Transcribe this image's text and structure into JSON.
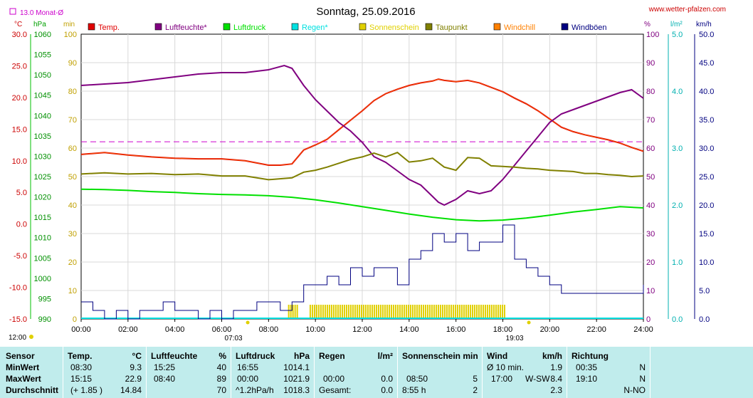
{
  "header": {
    "title": "Sonntag, 25.09.2016",
    "website": "www.wetter-pfalzen.com",
    "month_avg_label": "13.0 Monat-Ø"
  },
  "legend": [
    {
      "label": "Temp.",
      "color": "#e00000"
    },
    {
      "label": "Luftfeuchte*",
      "color": "#800080"
    },
    {
      "label": "Luftdruck",
      "color": "#00e000"
    },
    {
      "label": "Regen*",
      "color": "#00e0e0"
    },
    {
      "label": "Sonnenschein",
      "color": "#e0d000"
    },
    {
      "label": "Taupunkt",
      "color": "#808000"
    },
    {
      "label": "Windchill",
      "color": "#ff8000"
    },
    {
      "label": "Windböen",
      "color": "#000080"
    }
  ],
  "axis_units": {
    "temp": "°C",
    "pressure": "hPa",
    "sun": "min",
    "humidity": "%",
    "rain": "l/m²",
    "wind": "km/h"
  },
  "axes": {
    "temp_ticks": [
      "30.0",
      "25.0",
      "20.0",
      "15.0",
      "10.0",
      "5.0",
      "0.0",
      "-5.0",
      "-10.0",
      "-15.0"
    ],
    "pressure_ticks": [
      "1060",
      "1055",
      "1050",
      "1045",
      "1040",
      "1035",
      "1030",
      "1025",
      "1020",
      "1015",
      "1010",
      "1005",
      "1000",
      "995",
      "990"
    ],
    "sun_ticks": [
      "100",
      "90",
      "80",
      "70",
      "60",
      "50",
      "40",
      "30",
      "20",
      "10",
      "0"
    ],
    "humidity_ticks": [
      "100",
      "90",
      "80",
      "70",
      "60",
      "50",
      "40",
      "30",
      "20",
      "10",
      "0"
    ],
    "rain_ticks": [
      "5.0",
      "4.0",
      "3.0",
      "2.0",
      "1.0",
      "0.0"
    ],
    "wind_ticks": [
      "50.0",
      "45.0",
      "40.0",
      "35.0",
      "30.0",
      "25.0",
      "20.0",
      "15.0",
      "10.0",
      "5.0",
      "0.0"
    ],
    "time_ticks": [
      "00:00",
      "02:00",
      "04:00",
      "06:00",
      "08:00",
      "10:00",
      "12:00",
      "14:00",
      "16:00",
      "18:00",
      "20:00",
      "22:00",
      "24:00"
    ],
    "sunrise": "07:03",
    "sunset": "19:03",
    "noon_label": "12:00"
  },
  "chart_data": {
    "type": "line",
    "x_unit": "hours",
    "xlim": [
      0,
      24
    ],
    "month_avg_temp": 13.0,
    "series": [
      {
        "name": "Temp.",
        "color": "#e00000",
        "axis": "temp",
        "ylim": [
          -15,
          30
        ],
        "x": [
          0,
          1,
          2,
          3,
          4,
          5,
          6,
          7,
          8,
          8.5,
          9,
          9.5,
          10,
          10.5,
          11,
          11.5,
          12,
          12.5,
          13,
          13.5,
          14,
          14.5,
          15,
          15.25,
          15.5,
          16,
          16.5,
          17,
          17.5,
          18,
          18.5,
          19,
          19.5,
          20,
          20.5,
          21,
          21.5,
          22,
          22.5,
          23,
          23.5,
          24
        ],
        "y": [
          11.0,
          11.3,
          10.9,
          10.6,
          10.4,
          10.3,
          10.3,
          10.0,
          9.3,
          9.3,
          9.5,
          11.7,
          12.5,
          13.4,
          14.9,
          16.4,
          17.9,
          19.5,
          20.6,
          21.3,
          21.9,
          22.3,
          22.6,
          22.9,
          22.7,
          22.5,
          22.7,
          22.3,
          21.6,
          20.9,
          19.9,
          19.0,
          17.9,
          16.6,
          15.3,
          14.6,
          14.1,
          13.7,
          13.3,
          12.8,
          12.1,
          11.5
        ]
      },
      {
        "name": "Luftfeuchte*",
        "color": "#800080",
        "axis": "humidity",
        "ylim": [
          0,
          100
        ],
        "x": [
          0,
          1,
          2,
          3,
          4,
          5,
          6,
          7,
          8,
          8.67,
          9,
          9.5,
          10,
          10.5,
          11,
          11.5,
          12,
          12.5,
          13,
          13.5,
          14,
          14.5,
          15,
          15.25,
          15.5,
          16,
          16.5,
          17,
          17.5,
          18,
          18.5,
          19,
          19.5,
          20,
          20.5,
          21,
          21.5,
          22,
          22.5,
          23,
          23.5,
          24
        ],
        "y": [
          82,
          82.5,
          83,
          84,
          85,
          86,
          86.5,
          86.5,
          87.5,
          89,
          88,
          82,
          77,
          73,
          69,
          66,
          62,
          57,
          55,
          52,
          49,
          47,
          43,
          41,
          40,
          42,
          45,
          44,
          45,
          49,
          54,
          59,
          64,
          69,
          72,
          73.5,
          75,
          76.5,
          78,
          79.5,
          80.5,
          77.5
        ]
      },
      {
        "name": "Luftdruck",
        "color": "#00e000",
        "axis": "pressure",
        "ylim": [
          990,
          1060
        ],
        "x": [
          0,
          1,
          2,
          3,
          4,
          5,
          6,
          7,
          8,
          9,
          10,
          11,
          12,
          13,
          14,
          15,
          16,
          17,
          18,
          19,
          20,
          21,
          22,
          23,
          24
        ],
        "y": [
          1021.9,
          1021.8,
          1021.6,
          1021.3,
          1021.1,
          1020.8,
          1020.6,
          1020.5,
          1020.3,
          1019.9,
          1019.3,
          1018.5,
          1017.6,
          1016.7,
          1015.8,
          1015.0,
          1014.4,
          1014.1,
          1014.3,
          1014.8,
          1015.5,
          1016.3,
          1016.9,
          1017.6,
          1017.3
        ]
      },
      {
        "name": "Taupunkt",
        "color": "#808000",
        "axis": "temp",
        "ylim": [
          -15,
          30
        ],
        "x": [
          0,
          1,
          2,
          3,
          4,
          5,
          6,
          7,
          8,
          9,
          9.5,
          10,
          10.5,
          11,
          11.5,
          12,
          12.5,
          13,
          13.5,
          14,
          14.5,
          15,
          15.5,
          16,
          16.5,
          17,
          17.5,
          18,
          18.5,
          19,
          19.5,
          20,
          20.5,
          21,
          21.5,
          22,
          22.5,
          23,
          23.5,
          24
        ],
        "y": [
          7.9,
          8.1,
          7.9,
          8.0,
          7.8,
          7.9,
          7.6,
          7.6,
          7.0,
          7.3,
          8.2,
          8.5,
          9.0,
          9.6,
          10.2,
          10.6,
          11.2,
          10.6,
          11.3,
          9.8,
          10.0,
          10.4,
          9.0,
          8.5,
          10.5,
          10.4,
          9.2,
          9.1,
          9.0,
          8.8,
          8.7,
          8.5,
          8.4,
          8.3,
          8.0,
          8.0,
          7.8,
          7.7,
          7.5,
          7.6
        ]
      },
      {
        "name": "Windböen",
        "color": "#000080",
        "axis": "wind",
        "ylim": [
          0,
          50
        ],
        "x": [
          0,
          0.5,
          1,
          1.5,
          2,
          2.5,
          3,
          3.5,
          4,
          4.5,
          5,
          5.5,
          6,
          6.5,
          7,
          7.5,
          8,
          8.5,
          9,
          9.5,
          10,
          10.5,
          11,
          11.5,
          12,
          12.5,
          13,
          13.5,
          14,
          14.5,
          15,
          15.5,
          16,
          16.5,
          17,
          17.5,
          18,
          18.5,
          19,
          19.5,
          20,
          20.5,
          21,
          21.5,
          22,
          22.5,
          23,
          23.5,
          24
        ],
        "y": [
          3,
          1.5,
          0,
          1.5,
          0,
          1.5,
          1.5,
          3,
          1.5,
          1.5,
          0,
          1.5,
          0,
          1.5,
          1.5,
          3,
          3,
          1.5,
          3,
          6,
          6,
          7.5,
          6,
          9,
          7.5,
          9,
          9,
          6,
          10.5,
          12,
          15,
          13.5,
          15,
          12,
          13.5,
          13.5,
          16.5,
          10.5,
          9,
          7.5,
          6,
          4.5,
          4.5,
          4.5,
          4.5,
          4.5,
          4.5,
          4.5,
          6
        ]
      },
      {
        "name": "Sonnenschein",
        "color": "#e0d000",
        "axis": "sun",
        "ylim": [
          0,
          100
        ],
        "segments": [
          [
            8.83,
            9.25
          ],
          [
            9.75,
            18.1
          ]
        ],
        "value": 5
      }
    ]
  },
  "stats": {
    "sensor": {
      "header": "Sensor",
      "rows": [
        "MinWert",
        "MaxWert",
        "Durchschnitt"
      ]
    },
    "temp": {
      "header": "Temp.",
      "unit": "°C",
      "rows": [
        [
          "08:30",
          "9.3"
        ],
        [
          "15:15",
          "22.9"
        ],
        [
          "(+ 1.85 )",
          "14.84"
        ]
      ]
    },
    "humidity": {
      "header": "Luftfeuchte",
      "unit": "%",
      "rows": [
        [
          "15:25",
          "40"
        ],
        [
          "08:40",
          "89"
        ],
        [
          "",
          "70"
        ]
      ]
    },
    "pressure": {
      "header": "Luftdruck",
      "unit": "hPa",
      "rows": [
        [
          "16:55",
          "1014.1"
        ],
        [
          "00:00",
          "1021.9"
        ],
        [
          "^1.2hPa/h",
          "1018.3"
        ]
      ]
    },
    "rain": {
      "header": "Regen",
      "unit": "l/m²",
      "rows": [
        [
          "",
          ""
        ],
        [
          "00:00",
          "0.0"
        ],
        [
          "Gesamt:",
          "0.0"
        ]
      ]
    },
    "sun": {
      "header": "Sonnenschein min",
      "rows": [
        [
          "",
          ""
        ],
        [
          "08:50",
          "5"
        ],
        [
          "8:55 h",
          "2"
        ]
      ]
    },
    "wind": {
      "header": "Wind",
      "unit": "km/h",
      "rows": [
        [
          "Ø 10 min.",
          "",
          "1.9"
        ],
        [
          "17:00",
          "W-SW",
          "8.4"
        ],
        [
          "",
          "",
          "2.3"
        ]
      ]
    },
    "direction": {
      "header": "Richtung",
      "rows": [
        [
          "00:35",
          "N"
        ],
        [
          "19:10",
          "N"
        ],
        [
          "",
          "N-NO"
        ]
      ]
    }
  }
}
